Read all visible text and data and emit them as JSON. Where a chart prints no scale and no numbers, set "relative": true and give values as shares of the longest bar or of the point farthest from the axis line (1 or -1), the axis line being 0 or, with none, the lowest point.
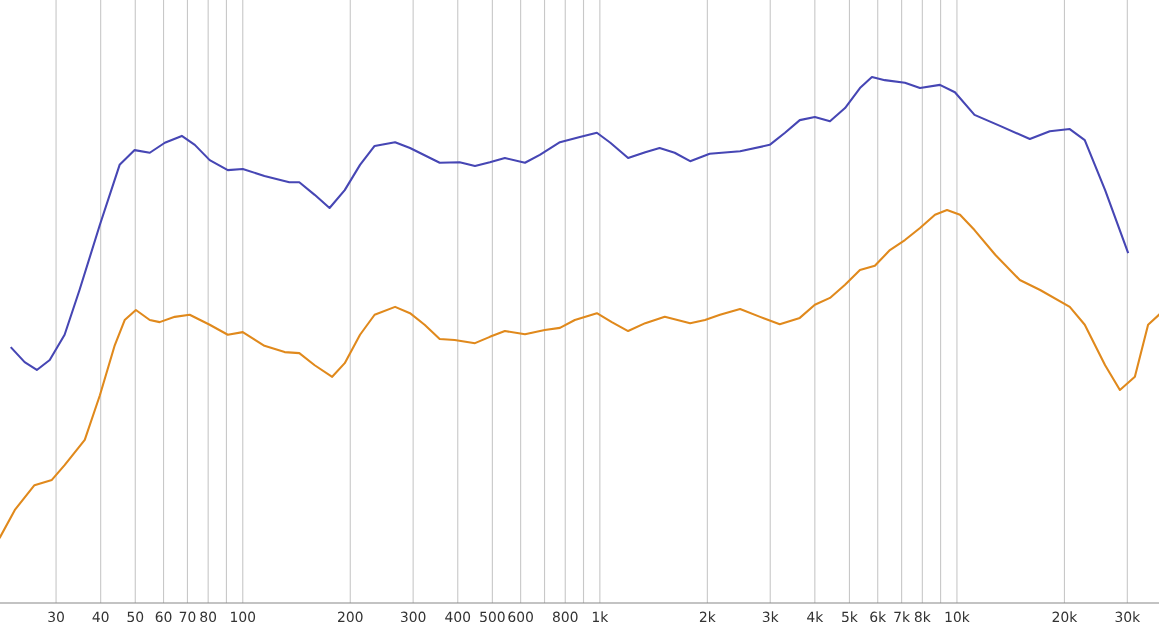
{
  "chart_data": {
    "type": "line",
    "relative": true,
    "log": "x",
    "grid": "x",
    "marker": "none",
    "line_style": "solid",
    "xlim": [
      20.9,
      36800
    ],
    "xticks": [
      30,
      40,
      50,
      60,
      70,
      80,
      {
        "value": 90,
        "label": null
      },
      100,
      200,
      300,
      400,
      500,
      600,
      {
        "value": 700,
        "label": null
      },
      800,
      {
        "value": 900,
        "label": null
      },
      {
        "value": 1000,
        "label": "1k"
      },
      {
        "value": 2000,
        "label": "2k"
      },
      {
        "value": 3000,
        "label": "3k"
      },
      {
        "value": 4000,
        "label": "4k"
      },
      {
        "value": 5000,
        "label": "5k"
      },
      {
        "value": 6000,
        "label": "6k"
      },
      {
        "value": 7000,
        "label": "7k"
      },
      {
        "value": 8000,
        "label": "8k"
      },
      {
        "value": 9000,
        "label": null
      },
      {
        "value": 10000,
        "label": "10k"
      },
      {
        "value": 20000,
        "label": "20k"
      },
      {
        "value": 30000,
        "label": "30k"
      }
    ],
    "series": [
      {
        "color": "#4646b4",
        "x": [
          22.5,
          24.5,
          26.5,
          28.8,
          31.7,
          34.9,
          39.8,
          45.2,
          49.8,
          54.9,
          60.5,
          67.5,
          73.4,
          80.8,
          90.8,
          100,
          115,
          135,
          144,
          159,
          175,
          193,
          213,
          234,
          267,
          294,
          356,
          405,
          447,
          492,
          542,
          617,
          679,
          773,
          879,
          981,
          1070,
          1200,
          1340,
          1470,
          1620,
          1790,
          2030,
          2470,
          2990,
          3300,
          3630,
          4000,
          4410,
          4860,
          5350,
          5780,
          6280,
          7150,
          7880,
          8960,
          9870,
          11200,
          13200,
          16000,
          18200,
          20700,
          22800,
          26000,
          30100
        ],
        "values": [
          0.485,
          0.458,
          0.443,
          0.462,
          0.51,
          0.595,
          0.719,
          0.833,
          0.861,
          0.856,
          0.875,
          0.888,
          0.871,
          0.842,
          0.823,
          0.825,
          0.812,
          0.8,
          0.8,
          0.776,
          0.751,
          0.785,
          0.833,
          0.869,
          0.876,
          0.865,
          0.837,
          0.838,
          0.831,
          0.838,
          0.846,
          0.837,
          0.852,
          0.876,
          0.886,
          0.894,
          0.875,
          0.846,
          0.857,
          0.865,
          0.856,
          0.84,
          0.854,
          0.859,
          0.871,
          0.894,
          0.918,
          0.924,
          0.916,
          0.941,
          0.979,
          1,
          0.994,
          0.989,
          0.979,
          0.985,
          0.971,
          0.928,
          0.907,
          0.882,
          0.897,
          0.901,
          0.88,
          0.785,
          0.667
        ]
      },
      {
        "color": "#e0891c",
        "x": [
          20.9,
          23.0,
          26.1,
          29.2,
          31.7,
          36.1,
          39.8,
          43.8,
          46.7,
          50.2,
          54.9,
          58.5,
          64.5,
          71.0,
          80.8,
          90.8,
          100,
          115,
          131,
          144,
          159,
          178,
          193,
          213,
          234,
          267,
          294,
          323,
          356,
          392,
          447,
          492,
          542,
          617,
          701,
          773,
          851,
          981,
          1080,
          1200,
          1340,
          1520,
          1790,
          1970,
          2170,
          2470,
          2810,
          3190,
          3630,
          4000,
          4410,
          4860,
          5350,
          5890,
          6490,
          7150,
          7880,
          8680,
          9380,
          10200,
          11200,
          12800,
          15000,
          17100,
          20700,
          22800,
          26000,
          28600,
          31500,
          34300,
          36800
        ],
        "values": [
          0.125,
          0.177,
          0.224,
          0.234,
          0.262,
          0.31,
          0.395,
          0.49,
          0.538,
          0.557,
          0.538,
          0.534,
          0.544,
          0.548,
          0.529,
          0.51,
          0.515,
          0.489,
          0.477,
          0.475,
          0.452,
          0.43,
          0.456,
          0.51,
          0.548,
          0.563,
          0.551,
          0.529,
          0.502,
          0.5,
          0.494,
          0.506,
          0.517,
          0.511,
          0.519,
          0.523,
          0.538,
          0.551,
          0.534,
          0.517,
          0.532,
          0.544,
          0.532,
          0.538,
          0.548,
          0.559,
          0.544,
          0.53,
          0.542,
          0.567,
          0.58,
          0.605,
          0.633,
          0.641,
          0.671,
          0.69,
          0.713,
          0.738,
          0.747,
          0.738,
          0.709,
          0.662,
          0.614,
          0.595,
          0.563,
          0.529,
          0.452,
          0.405,
          0.43,
          0.529,
          0.548
        ]
      }
    ]
  }
}
